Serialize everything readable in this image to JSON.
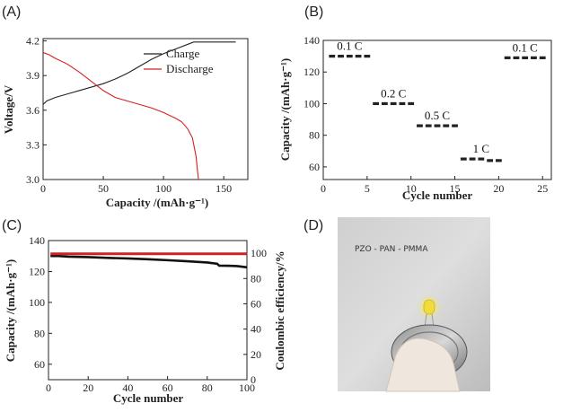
{
  "panels": {
    "a": "(A)",
    "b": "(B)",
    "c": "(C)",
    "d": "(D)"
  },
  "photo_text": "PZO - PAN - PMMA",
  "chart_data": [
    {
      "id": "A",
      "type": "line",
      "xlabel": "Capacity /(mAh·g⁻¹)",
      "ylabel": "Voltage/V",
      "xlim": [
        0,
        170
      ],
      "ylim": [
        3.0,
        4.22
      ],
      "xticks": [
        0,
        50,
        100,
        150
      ],
      "yticks": [
        3.0,
        3.3,
        3.6,
        3.9,
        4.2
      ],
      "ytick_labels": [
        "3.0",
        "3.3",
        "3.6",
        "3.9",
        "4.2"
      ],
      "legend_position": "top-right",
      "series": [
        {
          "name": "Charge",
          "color": "#222222",
          "x": [
            0,
            3,
            10,
            20,
            30,
            40,
            50,
            60,
            70,
            80,
            90,
            100,
            110,
            120,
            125,
            130,
            140,
            150,
            160
          ],
          "y": [
            3.65,
            3.68,
            3.71,
            3.74,
            3.77,
            3.8,
            3.83,
            3.87,
            3.92,
            3.98,
            4.04,
            4.09,
            4.13,
            4.17,
            4.19,
            4.19,
            4.19,
            4.19,
            4.19
          ]
        },
        {
          "name": "Discharge",
          "color": "#d42020",
          "x": [
            0,
            5,
            10,
            20,
            30,
            40,
            50,
            60,
            70,
            80,
            90,
            100,
            110,
            115,
            120,
            124,
            127,
            128,
            129
          ],
          "y": [
            4.1,
            4.08,
            4.05,
            4.0,
            3.93,
            3.85,
            3.77,
            3.71,
            3.68,
            3.65,
            3.62,
            3.58,
            3.53,
            3.5,
            3.44,
            3.36,
            3.2,
            3.1,
            3.0
          ]
        }
      ]
    },
    {
      "id": "B",
      "type": "scatter",
      "xlabel": "Cycle number",
      "ylabel": "Capacity /(mAh·g⁻¹)",
      "xlim": [
        0,
        26
      ],
      "ylim": [
        52,
        140
      ],
      "xticks": [
        0,
        5,
        10,
        15,
        20,
        25
      ],
      "yticks": [
        60,
        80,
        100,
        120,
        140
      ],
      "marker_color": "#222222",
      "x": [
        1,
        2,
        3,
        4,
        5,
        6,
        7,
        8,
        9,
        10,
        11,
        12,
        13,
        14,
        15,
        16,
        17,
        18,
        19,
        20,
        21,
        22,
        23,
        24,
        25
      ],
      "y": [
        130,
        130,
        130,
        130,
        130,
        100,
        100,
        100,
        100,
        100,
        86,
        86,
        86,
        86,
        86,
        65,
        65,
        65,
        64,
        64,
        129,
        129,
        129,
        129,
        129
      ],
      "annotations": [
        {
          "text": "0.1 C",
          "x": 3,
          "y": 130
        },
        {
          "text": "0.2 C",
          "x": 8,
          "y": 100
        },
        {
          "text": "0.5 C",
          "x": 13,
          "y": 86
        },
        {
          "text": "1 C",
          "x": 18,
          "y": 65
        },
        {
          "text": "0.1 C",
          "x": 23,
          "y": 129
        }
      ]
    },
    {
      "id": "C",
      "type": "line",
      "xlabel": "Cycle number",
      "ylabel": "Capacity /(mAh·g⁻¹)",
      "ylabel_right": "Coulombic efficiency/%",
      "xlim": [
        0,
        100
      ],
      "ylim": [
        50,
        140
      ],
      "ylim_right": [
        0,
        110
      ],
      "xticks": [
        0,
        20,
        40,
        60,
        80,
        100
      ],
      "yticks": [
        60,
        80,
        100,
        120,
        140
      ],
      "yticks_right": [
        0,
        20,
        40,
        60,
        80,
        100
      ],
      "series": [
        {
          "name": "Capacity",
          "axis": "left",
          "color": "#111111",
          "x": [
            1,
            5,
            10,
            20,
            30,
            40,
            50,
            60,
            70,
            80,
            85,
            86,
            90,
            95,
            100
          ],
          "y": [
            130,
            130,
            129.6,
            129.3,
            128.8,
            128.4,
            127.9,
            127.3,
            126.6,
            125.8,
            125,
            123.8,
            123.7,
            123.5,
            122.7
          ]
        },
        {
          "name": "Coulombic efficiency",
          "axis": "right",
          "color": "#d42020",
          "x": [
            1,
            100
          ],
          "y": [
            99.5,
            99.5
          ]
        }
      ]
    }
  ]
}
